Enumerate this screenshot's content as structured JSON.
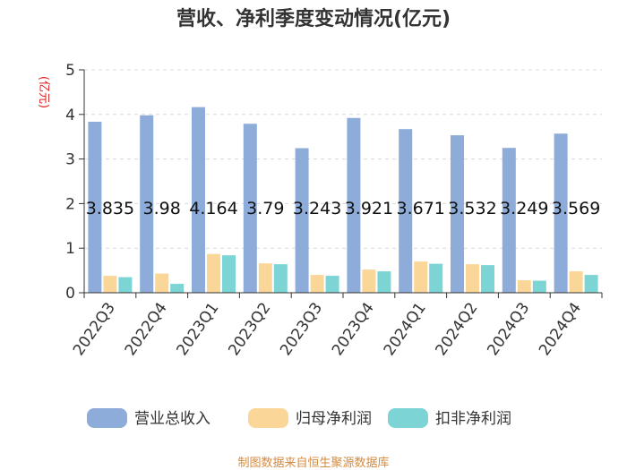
{
  "chart_data": {
    "type": "bar",
    "title": "营收、净利季度变动情况(亿元)",
    "ylabel": "(亿元)",
    "ylim": [
      0,
      5
    ],
    "yticks": [
      0,
      1,
      2,
      3,
      4,
      5
    ],
    "categories": [
      "2022Q3",
      "2022Q4",
      "2023Q1",
      "2023Q2",
      "2023Q3",
      "2023Q4",
      "2024Q1",
      "2024Q2",
      "2024Q3",
      "2024Q4"
    ],
    "series": [
      {
        "name": "营业总收入",
        "color": "#8eacd9",
        "values": [
          3.835,
          3.98,
          4.164,
          3.79,
          3.243,
          3.921,
          3.671,
          3.532,
          3.249,
          3.569
        ],
        "labels": [
          "3.835",
          "3.98",
          "4.164",
          "3.79",
          "3.243",
          "3.921",
          "3.671",
          "3.532",
          "3.249",
          "3.569"
        ]
      },
      {
        "name": "归母净利润",
        "color": "#fbd699",
        "values": [
          0.38,
          0.43,
          0.87,
          0.66,
          0.4,
          0.52,
          0.7,
          0.64,
          0.28,
          0.48
        ]
      },
      {
        "name": "扣非净利润",
        "color": "#7dd4d4",
        "values": [
          0.35,
          0.2,
          0.84,
          0.64,
          0.38,
          0.48,
          0.65,
          0.62,
          0.27,
          0.4
        ]
      }
    ],
    "grid": true,
    "legend": "bottom"
  },
  "source_text": "制图数据来自恒生聚源数据库"
}
